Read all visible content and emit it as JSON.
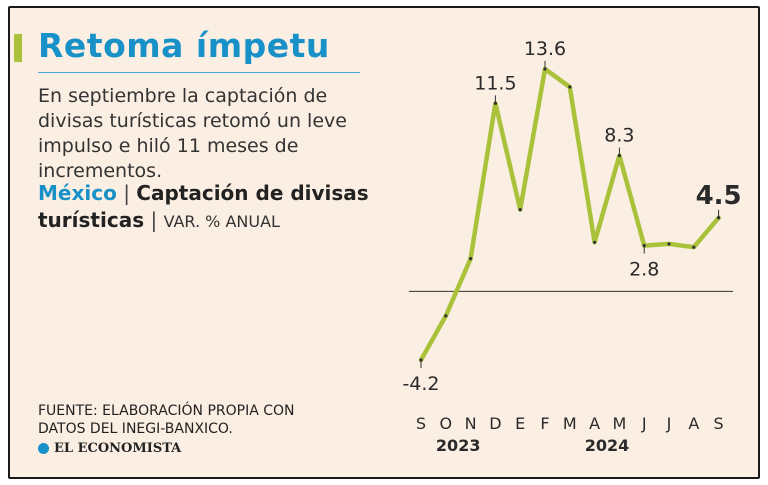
{
  "header": {
    "title": "Retoma ímpetu",
    "dek": "En septiembre la captación de divisas turísticas retomó un leve impulso e hiló 11 meses de incrementos."
  },
  "subtitle": {
    "country": "México",
    "separator": "|",
    "metric": "Captación de divisas turísticas",
    "unit": "VAR. % ANUAL"
  },
  "source": {
    "text": "FUENTE: ELABORACIÓN PROPIA CON DATOS DEL INEGI-BANXICO.",
    "logo_text": "EL ECONOMISTA",
    "logo_icon": "el-economista-logo-icon"
  },
  "colors": {
    "title": "#1890c8",
    "line": "#a9c23a",
    "background": "#fbeee2",
    "accent_bar": "#a9c23a"
  },
  "chart_data": {
    "type": "line",
    "title": "Captación de divisas turísticas",
    "ylabel": "VAR. % ANUAL",
    "categories": [
      "S",
      "O",
      "N",
      "D",
      "E",
      "F",
      "M",
      "A",
      "M",
      "J",
      "J",
      "A",
      "S"
    ],
    "year_labels": [
      {
        "text": "2023",
        "category_index": 1.5
      },
      {
        "text": "2024",
        "category_index": 7.5
      }
    ],
    "series": [
      {
        "values": [
          -4.2,
          -1.5,
          2.0,
          11.5,
          5.0,
          13.6,
          12.5,
          3.0,
          8.3,
          2.8,
          2.9,
          2.7,
          4.5
        ],
        "color": "#a9c23a"
      }
    ],
    "ylim": [
      -4.2,
      13.6
    ],
    "zero_line": true,
    "grid": false,
    "data_labels": [
      {
        "index": 0,
        "text": "-4.2",
        "position": "below"
      },
      {
        "index": 3,
        "text": "11.5",
        "position": "above"
      },
      {
        "index": 5,
        "text": "13.6",
        "position": "above"
      },
      {
        "index": 8,
        "text": "8.3",
        "position": "above"
      },
      {
        "index": 9,
        "text": "2.8",
        "position": "below"
      },
      {
        "index": 12,
        "text": "4.5",
        "position": "above",
        "emphasis": true
      }
    ]
  }
}
